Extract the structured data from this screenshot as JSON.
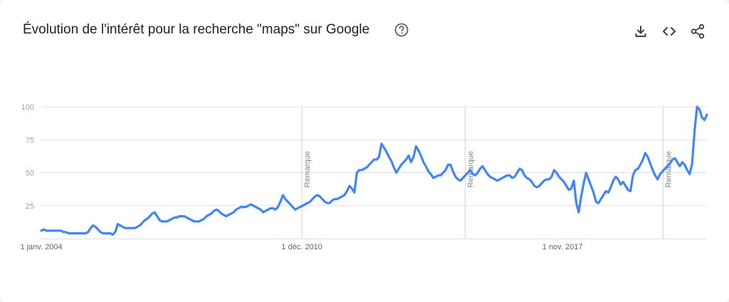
{
  "title": "Évolution de l'intérêt pour la recherche \"maps\" sur Google",
  "icons": {
    "help": "help-circle-icon",
    "download": "download-icon",
    "embed": "code-embed-icon",
    "share": "share-icon"
  },
  "colors": {
    "series": "#4285f4",
    "grid": "#e0e0e0",
    "axis_text": "#5f6368",
    "note_line": "#cfcfcf"
  },
  "chart_data": {
    "type": "line",
    "title": "",
    "xlabel": "",
    "ylabel": "",
    "ylim": [
      0,
      100
    ],
    "yticks": [
      25,
      50,
      75,
      100
    ],
    "x_start": "2004-01",
    "x_end": "2021-09",
    "x_tick_labels": [
      {
        "date": "2004-01",
        "label": "1 janv. 2004"
      },
      {
        "date": "2010-12",
        "label": "1 déc. 2010"
      },
      {
        "date": "2017-11",
        "label": "1 nov. 2017"
      }
    ],
    "annotations": [
      {
        "date": "2010-12",
        "label": "Remarque"
      },
      {
        "date": "2015-04",
        "label": "Remarque"
      },
      {
        "date": "2020-07",
        "label": "Remarque"
      }
    ],
    "series": [
      {
        "values": [
          6,
          7,
          6,
          6,
          6,
          6,
          6,
          6,
          6,
          5,
          5,
          4,
          4,
          4,
          4,
          4,
          4,
          4,
          4,
          5,
          8,
          10,
          9,
          7,
          5,
          4,
          4,
          4,
          4,
          3,
          5,
          11,
          10,
          9,
          8,
          8,
          8,
          8,
          8,
          9,
          10,
          12,
          14,
          15,
          17,
          19,
          20,
          17,
          14,
          13,
          13,
          13,
          14,
          15,
          16,
          16,
          17,
          17,
          17,
          16,
          15,
          14,
          13,
          13,
          13,
          14,
          15,
          17,
          18,
          19,
          21,
          22,
          21,
          19,
          18,
          17,
          18,
          19,
          20,
          22,
          23,
          24,
          24,
          24,
          25,
          26,
          25,
          24,
          23,
          22,
          20,
          21,
          22,
          23,
          23,
          22,
          24,
          28,
          33,
          30,
          28,
          26,
          24,
          22,
          23,
          24,
          25,
          26,
          27,
          28,
          30,
          32,
          33,
          32,
          30,
          28,
          27,
          27,
          29,
          30,
          30,
          31,
          32,
          33,
          36,
          40,
          38,
          35,
          50,
          52,
          52,
          53,
          54,
          56,
          58,
          60,
          60,
          62,
          72,
          69,
          66,
          62,
          59,
          54,
          50,
          53,
          56,
          58,
          60,
          63,
          58,
          62,
          70,
          67,
          63,
          58,
          55,
          51,
          49,
          46,
          47,
          48,
          48,
          50,
          52,
          56,
          56,
          51,
          47,
          45,
          44,
          46,
          48,
          50,
          52,
          49,
          48,
          50,
          53,
          55,
          52,
          49,
          47,
          46,
          45,
          44,
          45,
          46,
          47,
          48,
          48,
          46,
          47,
          50,
          53,
          52,
          48,
          46,
          45,
          43,
          40,
          39,
          40,
          42,
          44,
          45,
          45,
          47,
          52,
          50,
          47,
          45,
          43,
          40,
          37,
          38,
          44,
          27,
          20,
          32,
          42,
          50,
          45,
          40,
          35,
          28,
          27,
          30,
          33,
          36,
          35,
          39,
          44,
          47,
          45,
          41,
          43,
          40,
          37,
          36,
          48,
          52,
          53,
          56,
          60,
          65,
          62,
          57,
          52,
          48,
          45,
          49,
          51,
          53,
          55,
          57,
          60,
          61,
          58,
          55,
          58,
          56,
          52,
          49,
          57,
          82,
          100,
          98,
          92,
          90,
          94
        ]
      }
    ]
  }
}
